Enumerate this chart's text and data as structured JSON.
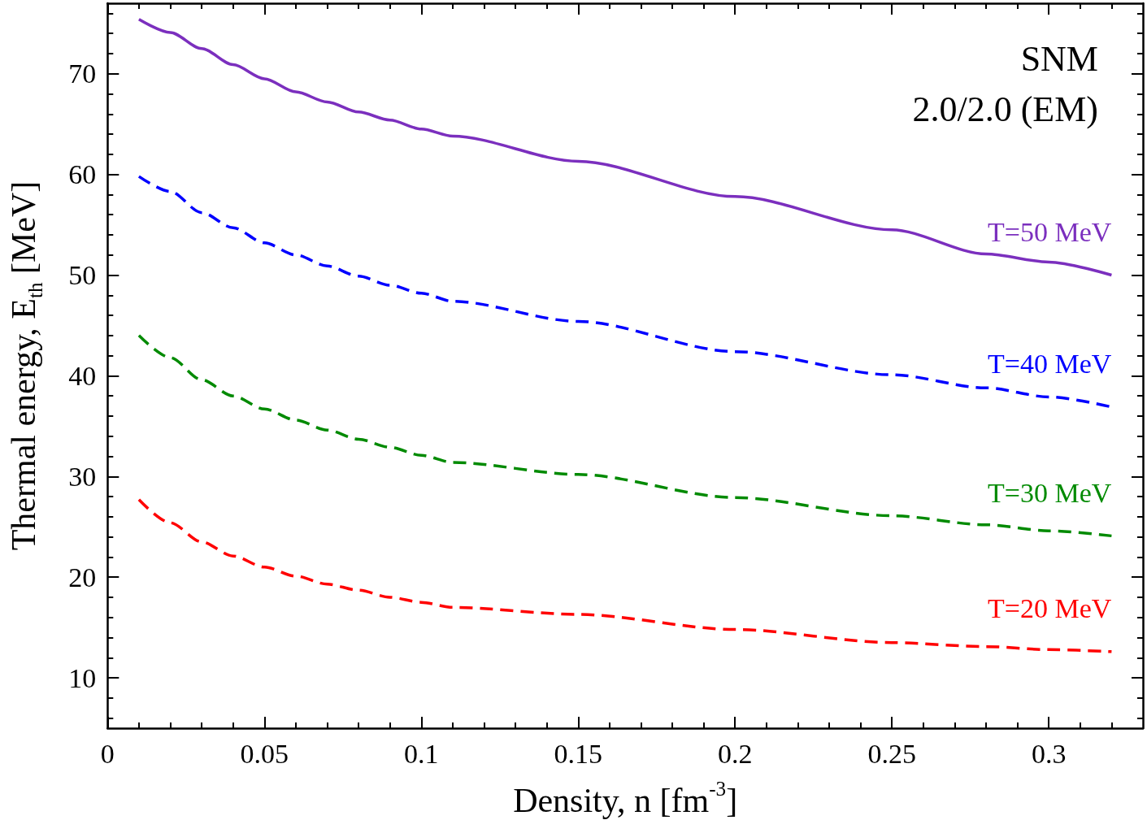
{
  "chart_data": {
    "type": "line",
    "xlabel": "Density, n [fm$^{-3}$]",
    "ylabel": "Thermal energy, E$_{th}$ [MeV]",
    "annotations": [
      "SNM",
      "2.0/2.0 (EM)"
    ],
    "x": [
      0.01,
      0.02,
      0.03,
      0.04,
      0.05,
      0.06,
      0.07,
      0.08,
      0.09,
      0.1,
      0.11,
      0.15,
      0.2,
      0.25,
      0.28,
      0.3,
      0.32
    ],
    "series": [
      {
        "name": "T=50 MeV",
        "color": "#7b2fbe",
        "line_style": "solid",
        "values": [
          75.4,
          74.1,
          72.5,
          70.9,
          69.5,
          68.2,
          67.2,
          66.2,
          65.4,
          64.5,
          63.8,
          61.3,
          57.8,
          54.5,
          52.1,
          51.3,
          50.0
        ]
      },
      {
        "name": "T=40 MeV",
        "color": "#0000ff",
        "line_style": "dashed",
        "values": [
          59.8,
          58.3,
          56.2,
          54.7,
          53.2,
          52.0,
          50.9,
          49.9,
          49.0,
          48.2,
          47.4,
          45.4,
          42.4,
          40.1,
          38.8,
          37.9,
          36.9
        ]
      },
      {
        "name": "T=30 MeV",
        "color": "#008a00",
        "line_style": "dashed",
        "values": [
          44.0,
          41.8,
          39.6,
          38.0,
          36.7,
          35.6,
          34.6,
          33.7,
          32.9,
          32.1,
          31.4,
          30.2,
          27.9,
          26.1,
          25.2,
          24.6,
          24.1
        ]
      },
      {
        "name": "T=20 MeV",
        "color": "#ff0000",
        "line_style": "dashed",
        "values": [
          27.7,
          25.4,
          23.5,
          22.1,
          21.0,
          20.1,
          19.3,
          18.7,
          18.0,
          17.5,
          17.0,
          16.3,
          14.8,
          13.5,
          13.1,
          12.8,
          12.6
        ]
      }
    ],
    "xlim": [
      0,
      0.33
    ],
    "xticks": [
      0,
      {
        "value": 0.01,
        "label": null
      },
      {
        "value": 0.02,
        "label": null
      },
      {
        "value": 0.03,
        "label": null
      },
      {
        "value": 0.04,
        "label": null
      },
      0.05,
      {
        "value": 0.06,
        "label": null
      },
      {
        "value": 0.07,
        "label": null
      },
      {
        "value": 0.08,
        "label": null
      },
      {
        "value": 0.09,
        "label": null
      },
      0.1,
      {
        "value": 0.11,
        "label": null
      },
      {
        "value": 0.12,
        "label": null
      },
      {
        "value": 0.13,
        "label": null
      },
      {
        "value": 0.14,
        "label": null
      },
      0.15,
      {
        "value": 0.16,
        "label": null
      },
      {
        "value": 0.17,
        "label": null
      },
      {
        "value": 0.18,
        "label": null
      },
      {
        "value": 0.19,
        "label": null
      },
      0.2,
      {
        "value": 0.21,
        "label": null
      },
      {
        "value": 0.22,
        "label": null
      },
      {
        "value": 0.23,
        "label": null
      },
      {
        "value": 0.24,
        "label": null
      },
      0.25,
      {
        "value": 0.26,
        "label": null
      },
      {
        "value": 0.27,
        "label": null
      },
      {
        "value": 0.28,
        "label": null
      },
      {
        "value": 0.29,
        "label": null
      },
      0.3,
      {
        "value": 0.31,
        "label": null
      },
      {
        "value": 0.32,
        "label": null
      }
    ],
    "ylim": [
      5,
      77
    ],
    "yticks": [
      {
        "value": 6,
        "label": null
      },
      {
        "value": 8,
        "label": null
      },
      10,
      {
        "value": 12,
        "label": null
      },
      {
        "value": 14,
        "label": null
      },
      {
        "value": 16,
        "label": null
      },
      {
        "value": 18,
        "label": null
      },
      20,
      {
        "value": 22,
        "label": null
      },
      {
        "value": 24,
        "label": null
      },
      {
        "value": 26,
        "label": null
      },
      {
        "value": 28,
        "label": null
      },
      30,
      {
        "value": 32,
        "label": null
      },
      {
        "value": 34,
        "label": null
      },
      {
        "value": 36,
        "label": null
      },
      {
        "value": 38,
        "label": null
      },
      40,
      {
        "value": 42,
        "label": null
      },
      {
        "value": 44,
        "label": null
      },
      {
        "value": 46,
        "label": null
      },
      {
        "value": 48,
        "label": null
      },
      50,
      {
        "value": 52,
        "label": null
      },
      {
        "value": 54,
        "label": null
      },
      {
        "value": 56,
        "label": null
      },
      {
        "value": 58,
        "label": null
      },
      60,
      {
        "value": 62,
        "label": null
      },
      {
        "value": 64,
        "label": null
      },
      {
        "value": 66,
        "label": null
      },
      {
        "value": 68,
        "label": null
      },
      70,
      {
        "value": 72,
        "label": null
      },
      {
        "value": 74,
        "label": null
      },
      {
        "value": 76,
        "label": null
      }
    ],
    "legend": false
  }
}
